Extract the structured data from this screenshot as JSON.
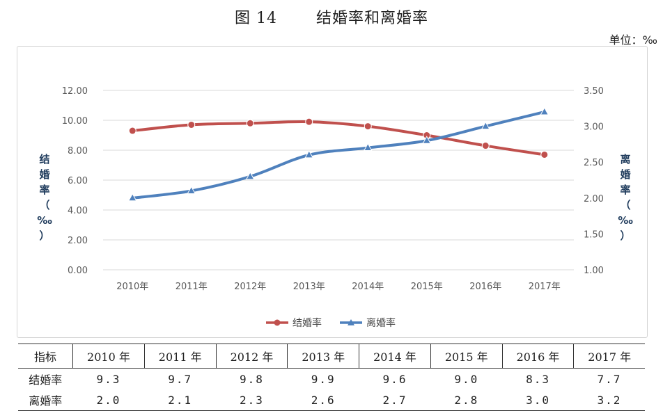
{
  "header": {
    "figure_no": "图 14",
    "title": "结婚率和离婚率",
    "unit": "单位：‰"
  },
  "chart_data": {
    "type": "line",
    "categories": [
      "2010年",
      "2011年",
      "2012年",
      "2013年",
      "2014年",
      "2015年",
      "2016年",
      "2017年"
    ],
    "series": [
      {
        "name": "结婚率",
        "axis": "left",
        "color": "#c0504d",
        "marker": "circle",
        "values": [
          9.3,
          9.7,
          9.8,
          9.9,
          9.6,
          9.0,
          8.3,
          7.7
        ]
      },
      {
        "name": "离婚率",
        "axis": "right",
        "color": "#4f81bd",
        "marker": "triangle",
        "values": [
          2.0,
          2.1,
          2.3,
          2.6,
          2.7,
          2.8,
          3.0,
          3.2
        ]
      }
    ],
    "y_left": {
      "label": "结婚率（‰）",
      "ylim": [
        0,
        12
      ],
      "ticks": [
        "0.00",
        "2.00",
        "4.00",
        "6.00",
        "8.00",
        "10.00",
        "12.00"
      ]
    },
    "y_right": {
      "label": "离婚率（‰）",
      "ylim": [
        1,
        3.5
      ],
      "ticks": [
        "1.00",
        "1.50",
        "2.00",
        "2.50",
        "3.00",
        "3.50"
      ]
    },
    "grid": true,
    "legend": "bottom"
  },
  "table": {
    "header": [
      "指标",
      "2010 年",
      "2011 年",
      "2012 年",
      "2013 年",
      "2014 年",
      "2015 年",
      "2016 年",
      "2017 年"
    ],
    "rows": [
      {
        "label": "结婚率",
        "values": [
          "9.3",
          "9.7",
          "9.8",
          "9.9",
          "9.6",
          "9.0",
          "8.3",
          "7.7"
        ]
      },
      {
        "label": "离婚率",
        "values": [
          "2.0",
          "2.1",
          "2.3",
          "2.6",
          "2.7",
          "2.8",
          "3.0",
          "3.2"
        ]
      }
    ]
  }
}
